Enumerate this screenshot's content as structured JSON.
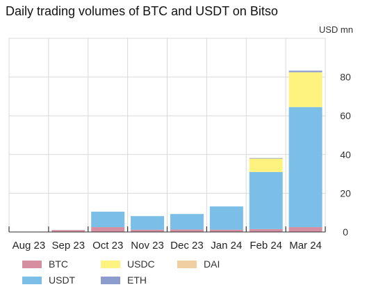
{
  "title": "Daily trading volumes of BTC and USDT on Bitso",
  "chart_data": {
    "type": "bar",
    "stacked": true,
    "title": "Daily trading volumes of BTC and USDT on Bitso",
    "unit_label": "USD mn",
    "ylim": [
      0,
      100
    ],
    "yticks": [
      0,
      20,
      40,
      60,
      80
    ],
    "y_axis_position": "right",
    "grid": true,
    "legend_position": "bottom-left",
    "categories": [
      "Aug 23",
      "Sep 23",
      "Oct 23",
      "Nov 23",
      "Dec 23",
      "Jan 24",
      "Feb 24",
      "Mar 24"
    ],
    "series": [
      {
        "name": "BTC",
        "color": "#d58fa1",
        "values": [
          0.2,
          1.0,
          2.5,
          1.2,
          1.3,
          1.2,
          1.5,
          2.5
        ]
      },
      {
        "name": "USDT",
        "color": "#7bbfe8",
        "values": [
          0.0,
          0.0,
          8.0,
          7.0,
          8.0,
          12.0,
          29.5,
          62.0
        ]
      },
      {
        "name": "USDC",
        "color": "#fef37f",
        "values": [
          0.0,
          0.0,
          0.0,
          0.0,
          0.0,
          0.0,
          7.0,
          18.0
        ]
      },
      {
        "name": "DAI",
        "color": "#f2cfa0",
        "values": [
          0.0,
          0.0,
          0.0,
          0.0,
          0.0,
          0.0,
          0.0,
          0.0
        ]
      },
      {
        "name": "ETH",
        "color": "#8c9ccf",
        "values": [
          0.0,
          0.0,
          0.0,
          0.0,
          0.0,
          0.0,
          0.2,
          0.8
        ]
      }
    ]
  },
  "legend": [
    {
      "label": "BTC",
      "color": "#d58fa1"
    },
    {
      "label": "USDC",
      "color": "#fef37f"
    },
    {
      "label": "DAI",
      "color": "#f2cfa0"
    },
    {
      "label": "USDT",
      "color": "#7bbfe8"
    },
    {
      "label": "ETH",
      "color": "#8c9ccf"
    }
  ]
}
